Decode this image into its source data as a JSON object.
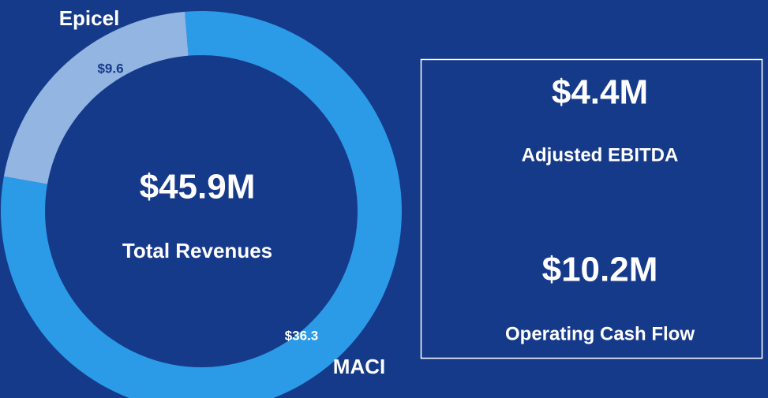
{
  "chart_data": {
    "type": "donut",
    "categories": [
      "Epicel",
      "MACI"
    ],
    "series": [
      {
        "name": "Revenue",
        "values": [
          9.6,
          36.3
        ],
        "value_labels": [
          "$9.6",
          "$36.3"
        ],
        "colors": [
          "#93b5e1",
          "#2b9be8"
        ]
      }
    ],
    "center_value": "$45.9M",
    "center_label": "Total Revenues"
  },
  "kpis": [
    {
      "value": "$4.4M",
      "label": "Adjusted EBITDA"
    },
    {
      "value": "$10.2M",
      "label": "Operating Cash Flow"
    }
  ]
}
